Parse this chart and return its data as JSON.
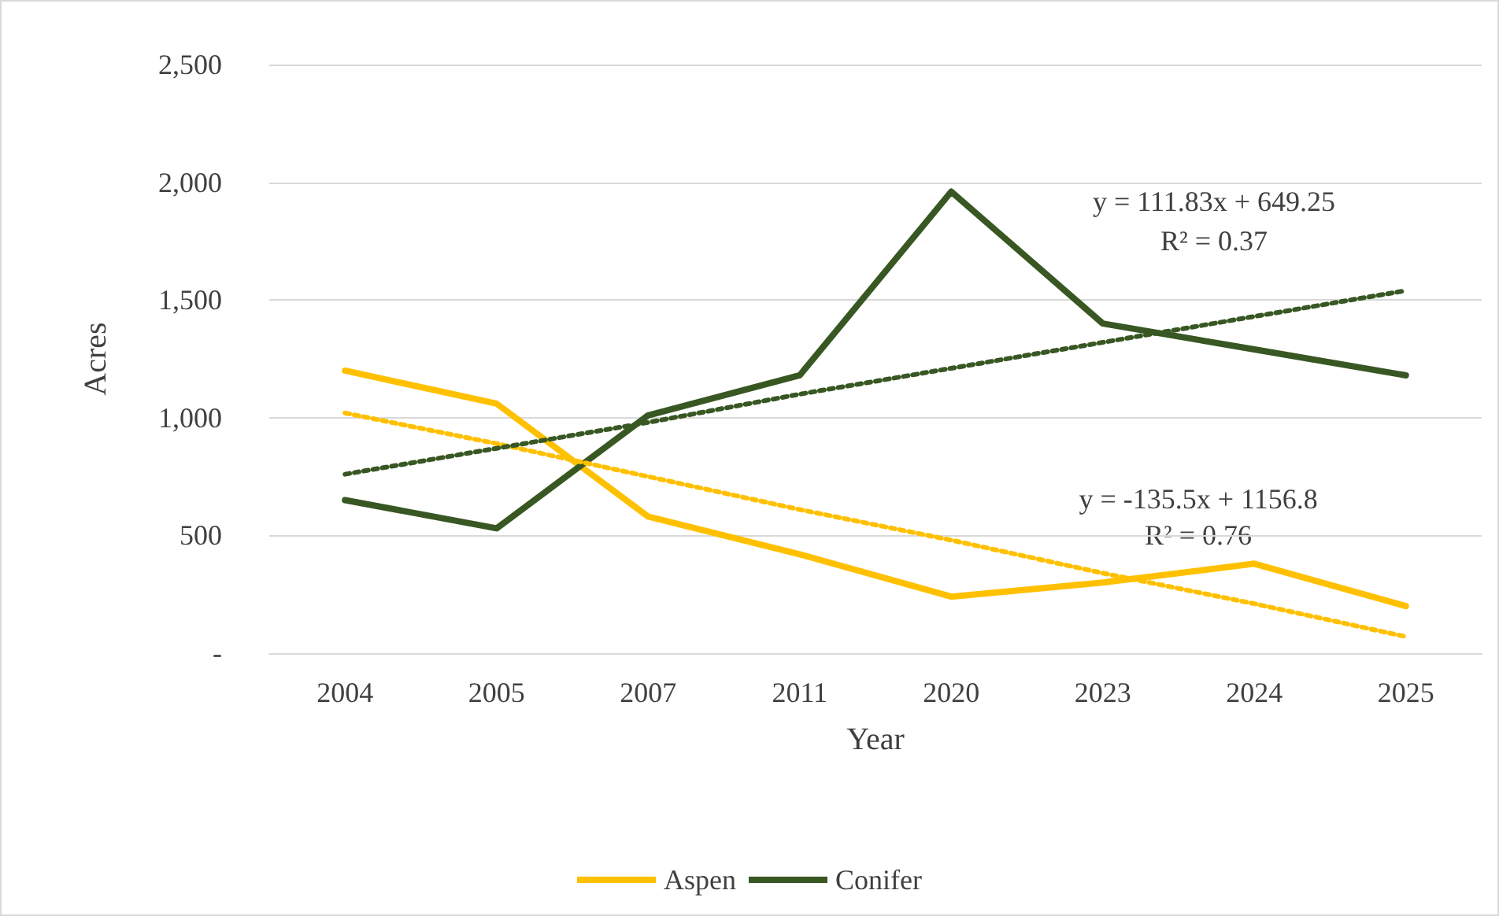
{
  "chart_data": {
    "type": "line",
    "xlabel": "Year",
    "ylabel": "Acres",
    "categories": [
      "2004",
      "2005",
      "2007",
      "2011",
      "2020",
      "2023",
      "2024",
      "2025"
    ],
    "series": [
      {
        "name": "Aspen",
        "color": "#ffc000",
        "values": [
          1200,
          1060,
          580,
          420,
          240,
          300,
          380,
          200
        ]
      },
      {
        "name": "Conifer",
        "color": "#385723",
        "values": [
          650,
          530,
          1010,
          1180,
          1960,
          1400,
          1290,
          1180
        ]
      },
      {
        "type": "line",
        "color": "#ffc000",
        "line_style": "dotted",
        "values": [
          1020,
          890,
          750,
          610,
          480,
          340,
          210,
          70
        ]
      },
      {
        "type": "line",
        "color": "#385723",
        "line_style": "dotted",
        "values": [
          760,
          870,
          980,
          1100,
          1210,
          1320,
          1430,
          1540
        ]
      }
    ],
    "ylim": [
      0,
      2500
    ],
    "yticks": [
      {
        "value": 0,
        "label": "-"
      },
      {
        "value": 500,
        "label": "500"
      },
      {
        "value": 1000,
        "label": "1,000"
      },
      {
        "value": 1500,
        "label": "1,500"
      },
      {
        "value": 2000,
        "label": "2,000"
      },
      {
        "value": 2500,
        "label": "2,500"
      }
    ],
    "annotations": [
      "y = 111.83x + 649.25",
      "R² = 0.37",
      "y = -135.5x + 1156.8",
      "R² = 0.76"
    ],
    "grid": "y",
    "legend": "bottom",
    "marker": "none",
    "line_style": "solid"
  }
}
